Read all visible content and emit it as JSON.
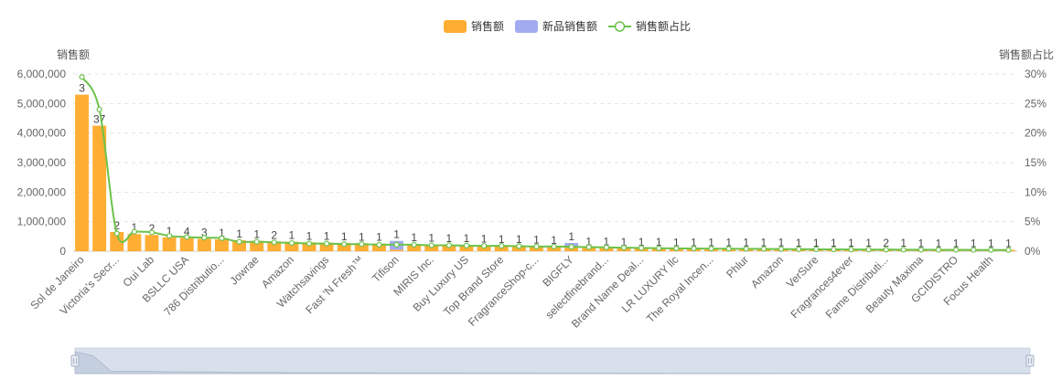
{
  "chart_data": {
    "type": "bar",
    "legend": [
      {
        "name": "销售额",
        "color": "#FFAE33",
        "shape": "rect"
      },
      {
        "name": "新品销售额",
        "color": "#A3ABF0",
        "shape": "rect"
      },
      {
        "name": "销售额占比",
        "color": "#6CC24A",
        "shape": "line"
      }
    ],
    "legend_position": "top-center",
    "y_left": {
      "label": "销售额",
      "min": 0,
      "max": 6000000,
      "ticks": [
        "0",
        "1,000,000",
        "2,000,000",
        "3,000,000",
        "4,000,000",
        "5,000,000",
        "6,000,000"
      ]
    },
    "y_right": {
      "label": "销售额占比",
      "min": 0,
      "max": 30,
      "ticks": [
        "0%",
        "5%",
        "10%",
        "15%",
        "20%",
        "25%",
        "30%"
      ]
    },
    "grid": true,
    "x_tick_labels_shown": [
      "Sol de Janeiro",
      "Victoria's Secr...",
      "Oui Lab",
      "BSLLC USA",
      "786 Distributio...",
      "Jowrae",
      "Amazon",
      "Watchsavings",
      "Fast 'N Fresh™",
      "Tifison",
      "MIRIS Inc.",
      "Buy Luxury US",
      "Top Brand Store",
      "FragranceShop-c...",
      "BIGFLY",
      "selectfinebrand...",
      "Brand Name Deal...",
      "LR LUXURY llc",
      "The Royal Incen...",
      "Phlur",
      "Amazon",
      "VerSure",
      "Fragrances4ever",
      "Fame Distributi...",
      "Beauty Maxima",
      "GCIDISTRO",
      "Focus Health"
    ],
    "series": [
      {
        "name": "销售额",
        "color": "#FFAE33",
        "values": [
          5300000,
          4250000,
          650000,
          580000,
          550000,
          470000,
          450000,
          420000,
          400000,
          370000,
          350000,
          330000,
          320000,
          300000,
          290000,
          280000,
          270000,
          260000,
          50000,
          240000,
          230000,
          220000,
          210000,
          200000,
          190000,
          180000,
          170000,
          160000,
          120000,
          110000,
          105000,
          100000,
          95000,
          90000,
          85000,
          82000,
          79000,
          76000,
          74000,
          72000,
          70000,
          68000,
          66000,
          64000,
          62000,
          60000,
          58000,
          56000,
          54000,
          52000,
          50000,
          48000,
          46000,
          44000
        ]
      },
      {
        "name": "新品销售额",
        "color": "#A3ABF0",
        "values": [
          0,
          0,
          0,
          0,
          0,
          0,
          0,
          0,
          0,
          0,
          0,
          0,
          0,
          0,
          0,
          0,
          0,
          0,
          300000,
          0,
          0,
          0,
          0,
          0,
          0,
          0,
          0,
          0,
          160000,
          0,
          0,
          0,
          0,
          0,
          0,
          0,
          0,
          0,
          0,
          0,
          0,
          0,
          0,
          0,
          0,
          0,
          0,
          0,
          0,
          0,
          0,
          0,
          0,
          0
        ]
      },
      {
        "name": "销售额占比",
        "color": "#6CC24A",
        "values": [
          29.5,
          24.0,
          3.0,
          3.3,
          3.2,
          2.6,
          2.4,
          2.3,
          2.2,
          1.6,
          1.6,
          1.5,
          1.4,
          1.3,
          1.3,
          1.2,
          1.2,
          1.1,
          1.1,
          1.1,
          1.0,
          1.0,
          0.95,
          0.9,
          0.9,
          0.85,
          0.8,
          0.8,
          0.75,
          0.7,
          0.65,
          0.6,
          0.55,
          0.5,
          0.48,
          0.46,
          0.44,
          0.42,
          0.4,
          0.38,
          0.36,
          0.34,
          0.32,
          0.3,
          0.29,
          0.28,
          0.27,
          0.26,
          0.25,
          0.24,
          0.23,
          0.22,
          0.21,
          0.2
        ]
      }
    ],
    "bar_labels": [
      "3",
      "37",
      "2",
      "1",
      "2",
      "1",
      "4",
      "3",
      "1",
      "1",
      "1",
      "2",
      "1",
      "1",
      "1",
      "1",
      "1",
      "1",
      "1",
      "1",
      "1",
      "1",
      "1",
      "1",
      "1",
      "1",
      "1",
      "1",
      "1",
      "1",
      "1",
      "1",
      "1",
      "1",
      "1",
      "1",
      "1",
      "1",
      "1",
      "1",
      "1",
      "1",
      "1",
      "1",
      "1",
      "1",
      "2",
      "1",
      "1",
      "1",
      "1",
      "1",
      "1",
      "1"
    ],
    "data_zoom": {
      "start": 0,
      "end": 100
    }
  }
}
